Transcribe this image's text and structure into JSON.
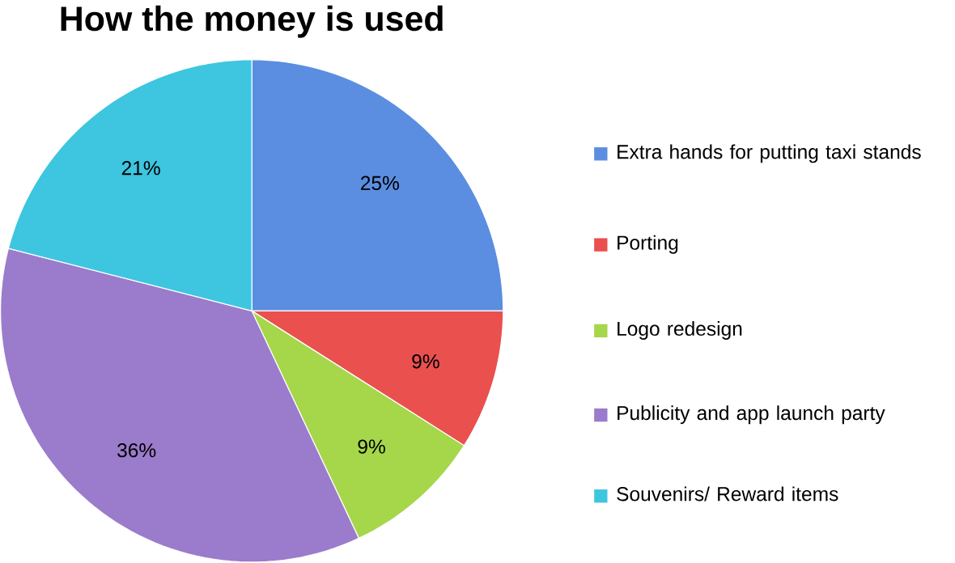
{
  "chart_data": {
    "type": "pie",
    "title": "How the money is used",
    "categories": [
      "Extra hands for putting taxi stands",
      "Porting",
      "Logo redesign",
      "Publicity and app launch party",
      "Souvenirs/ Reward items"
    ],
    "values": [
      25,
      9,
      9,
      36,
      21
    ],
    "colors": [
      "#5b8ee0",
      "#e9504e",
      "#a6d64a",
      "#9b7bcb",
      "#3ec5e0"
    ],
    "value_labels": [
      "25%",
      "9%",
      "9%",
      "36%",
      "21%"
    ],
    "legend": "right"
  }
}
